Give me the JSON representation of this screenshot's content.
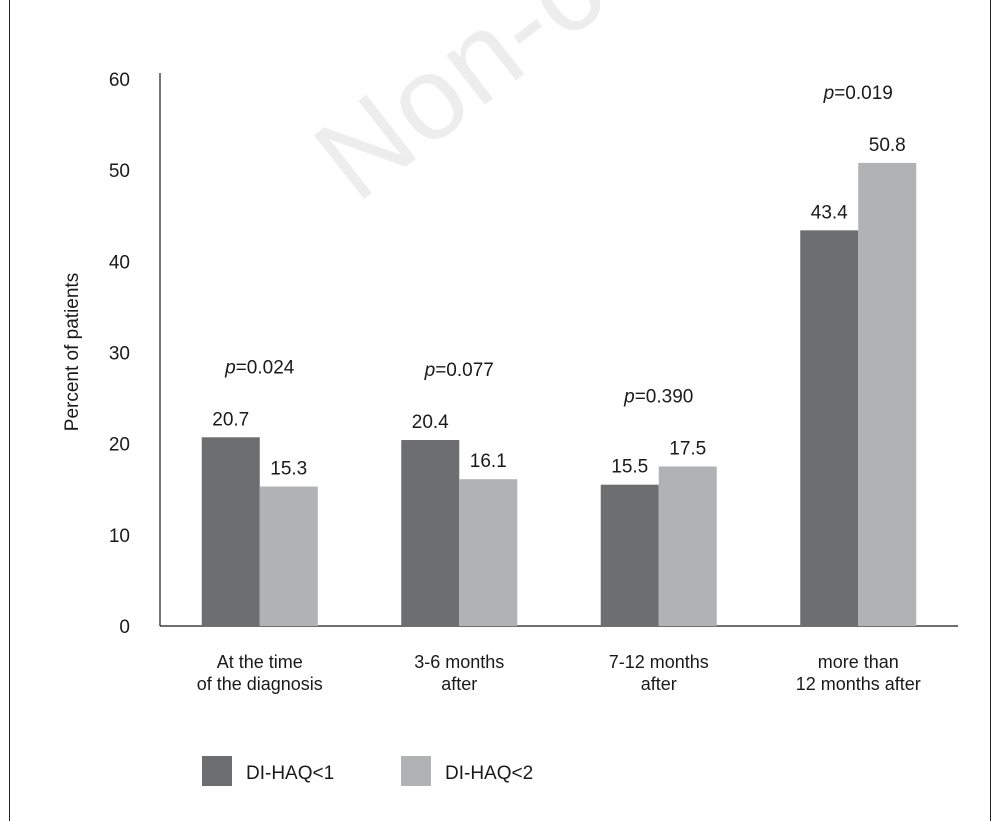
{
  "watermark": "Non-commercial",
  "chart_data": {
    "type": "bar",
    "title": "",
    "xlabel": "",
    "ylabel": "Percent of patients",
    "ylim": [
      0,
      60
    ],
    "yticks": [
      0,
      10,
      20,
      30,
      40,
      50,
      60
    ],
    "categories": [
      [
        "At the time",
        "of the diagnosis"
      ],
      [
        "3-6 months",
        "after"
      ],
      [
        "7-12 months",
        "after"
      ],
      [
        "more than",
        "12 months after"
      ]
    ],
    "series": [
      {
        "name": "DI-HAQ<1",
        "color": "#6d6e70",
        "values": [
          20.7,
          20.4,
          15.5,
          43.4
        ]
      },
      {
        "name": "DI-HAQ<2",
        "color": "#b1b2b4",
        "values": [
          15.3,
          16.1,
          17.5,
          50.8
        ]
      }
    ],
    "p_values": [
      "0.024",
      "0.077",
      "0.390",
      "0.019"
    ],
    "p_prefix": "p",
    "legend_position": "bottom-left"
  }
}
